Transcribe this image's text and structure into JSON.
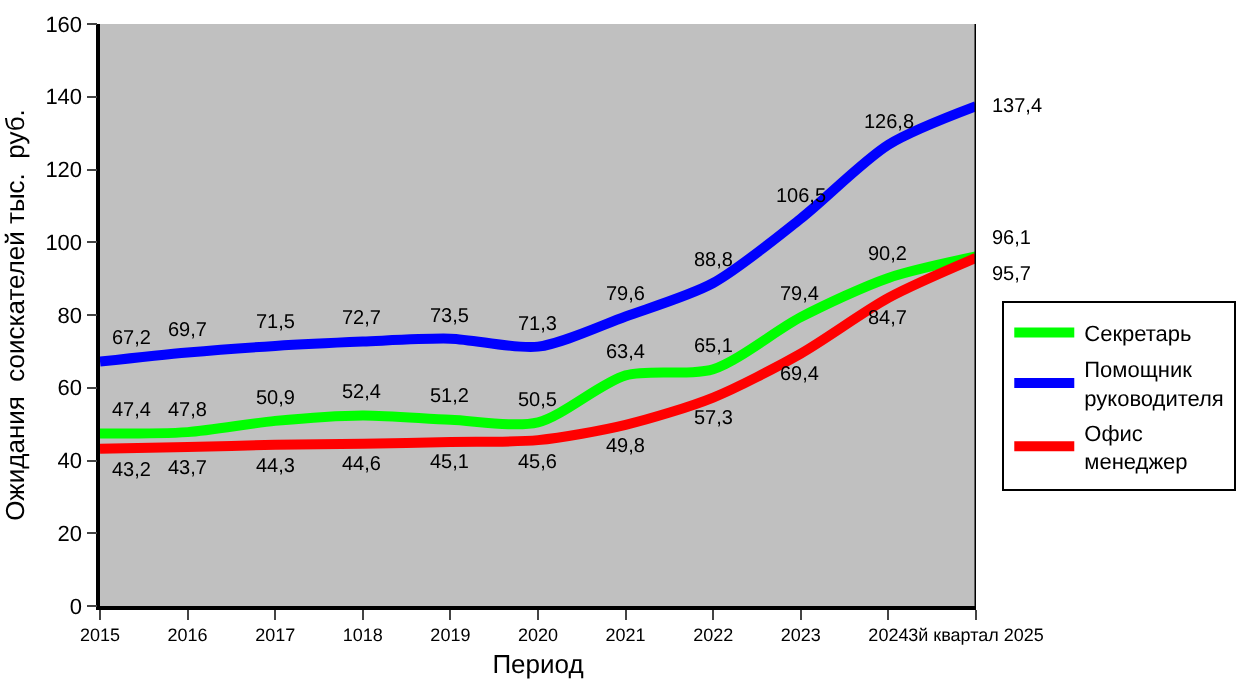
{
  "chart_data": {
    "type": "line",
    "xlabel": "Период",
    "ylabel": "Ожидания  соискателей тыс.  руб.",
    "categories": [
      "2015",
      "2016",
      "2017",
      "1018",
      "2019",
      "2020",
      "2021",
      "2022",
      "2023",
      "2024",
      "3й квартал 2025"
    ],
    "series": [
      {
        "name": "Секретарь",
        "color": "#00ff00",
        "values": [
          47.4,
          47.8,
          50.9,
          52.4,
          51.2,
          50.5,
          63.4,
          65.1,
          79.4,
          90.2,
          96.1
        ],
        "value_labels": [
          "47,4",
          "47,8",
          "50,9",
          "52,4",
          "51,2",
          "50,5",
          "63,4",
          "65,1",
          "79,4",
          "90,2",
          "96,1"
        ]
      },
      {
        "name": "Помощник руководителя",
        "color": "#0000ff",
        "values": [
          67.2,
          69.7,
          71.5,
          72.7,
          73.5,
          71.3,
          79.6,
          88.8,
          106.5,
          126.8,
          137.4
        ],
        "value_labels": [
          "67,2",
          "69,7",
          "71,5",
          "72,7",
          "73,5",
          "71,3",
          "79,6",
          "88,8",
          "106,5",
          "126,8",
          "137,4"
        ]
      },
      {
        "name": "Офис менеджер",
        "color": "#ff0000",
        "values": [
          43.2,
          43.7,
          44.3,
          44.6,
          45.1,
          45.6,
          49.8,
          57.3,
          69.4,
          84.7,
          95.7
        ],
        "value_labels": [
          "43,2",
          "43,7",
          "44,3",
          "44,6",
          "45,1",
          "45,6",
          "49,8",
          "57,3",
          "69,4",
          "84,7",
          "95,7"
        ]
      }
    ],
    "ylim": [
      0,
      160
    ],
    "yticks": [
      0,
      20,
      40,
      60,
      80,
      100,
      120,
      140,
      160
    ],
    "grid": false,
    "legend": "right",
    "marker": "none",
    "line_style": "solid"
  }
}
